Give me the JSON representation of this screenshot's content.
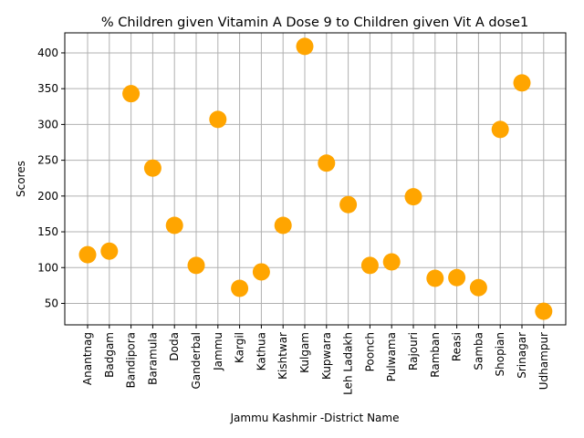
{
  "chart_data": {
    "type": "scatter",
    "title": "% Children given Vitamin A Dose 9 to Children given Vit A dose1",
    "xlabel": "Jammu Kashmir -District Name",
    "ylabel": "Scores",
    "categories": [
      "Anantnag",
      "Badgam",
      "Bandipora",
      "Baramula",
      "Doda",
      "Ganderbal",
      "Jammu",
      "Kargil",
      "Kathua",
      "Kishtwar",
      "Kulgam",
      "Kupwara",
      "Leh Ladakh",
      "Poonch",
      "Pulwama",
      "Rajouri",
      "Ramban",
      "Reasi",
      "Samba",
      "Shopian",
      "Srinagar",
      "Udhampur"
    ],
    "values": [
      118,
      123,
      343,
      239,
      159,
      103,
      307,
      71,
      94,
      159,
      409,
      246,
      188,
      103,
      108,
      199,
      85,
      86,
      72,
      293,
      358,
      39
    ],
    "ylim": [
      20,
      428
    ],
    "yticks": [
      50,
      100,
      150,
      200,
      250,
      300,
      350,
      400
    ],
    "grid": true,
    "marker_color": "#FFA500"
  }
}
